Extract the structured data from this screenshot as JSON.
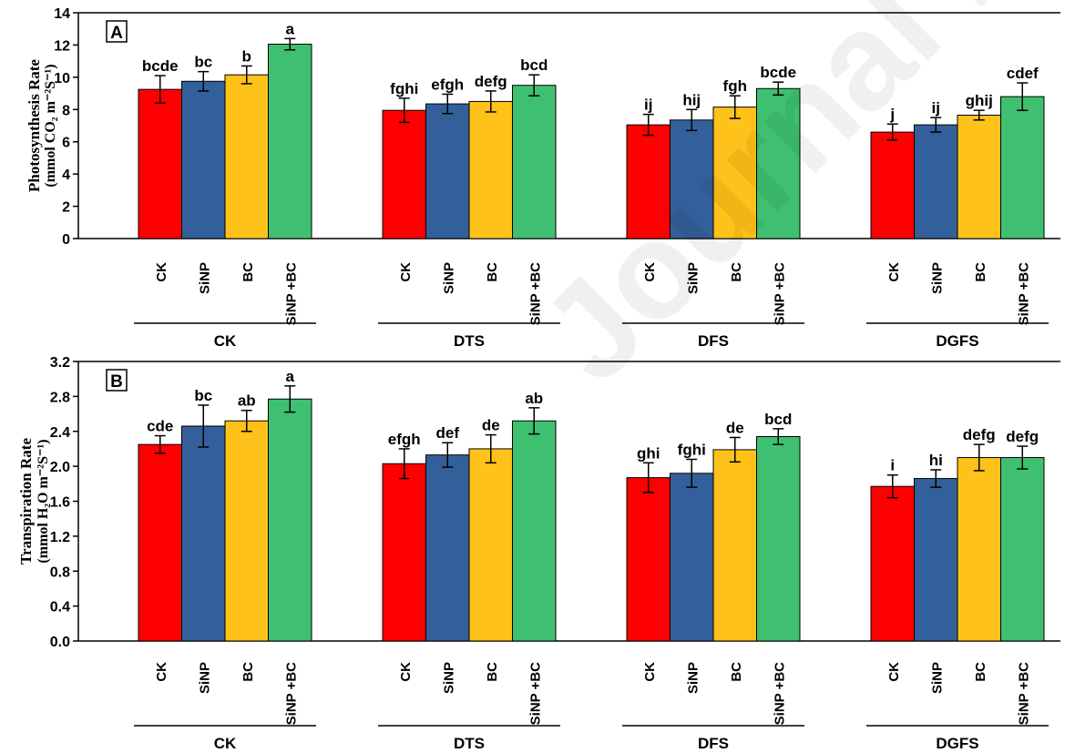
{
  "watermark": "Journal Pre-proof",
  "colors": {
    "CK": "#ff0000",
    "SiNP": "#33609a",
    "BC": "#ffc21a",
    "SiNP +BC": "#3ec070"
  },
  "chart_data": [
    {
      "type": "bar",
      "panel_label": "A",
      "ylabel_line1": "Photosynthesis Rate",
      "ylabel_line2": "(mmol CO₂ m⁻²S⁻¹)",
      "ylim": [
        0,
        14
      ],
      "ytick_step": 2,
      "ytick_decimals": 0,
      "groups": [
        "CK",
        "DTS",
        "DFS",
        "DGFS"
      ],
      "treatments": [
        "CK",
        "SiNP",
        "BC",
        "SiNP +BC"
      ],
      "series": [
        {
          "name": "CK",
          "values": [
            9.25,
            7.95,
            7.05,
            6.6
          ],
          "errors": [
            0.85,
            0.75,
            0.65,
            0.5
          ],
          "letters": [
            "bcde",
            "fghi",
            "ij",
            "j"
          ]
        },
        {
          "name": "SiNP",
          "values": [
            9.75,
            8.35,
            7.35,
            7.05
          ],
          "errors": [
            0.6,
            0.6,
            0.65,
            0.45
          ],
          "letters": [
            "bc",
            "efgh",
            "hij",
            "ij"
          ]
        },
        {
          "name": "BC",
          "values": [
            10.15,
            8.5,
            8.15,
            7.65
          ],
          "errors": [
            0.55,
            0.65,
            0.7,
            0.3
          ],
          "letters": [
            "b",
            "defg",
            "fgh",
            "ghij"
          ]
        },
        {
          "name": "SiNP +BC",
          "values": [
            12.05,
            9.5,
            9.3,
            8.8
          ],
          "errors": [
            0.35,
            0.65,
            0.4,
            0.85
          ],
          "letters": [
            "a",
            "bcd",
            "bcde",
            "cdef"
          ]
        }
      ]
    },
    {
      "type": "bar",
      "panel_label": "B",
      "ylabel_line1": "Transpiration Rate",
      "ylabel_line2": "(mmol H₂O m⁻²S⁻¹)",
      "ylim": [
        0,
        3.2
      ],
      "ytick_step": 0.4,
      "ytick_decimals": 1,
      "groups": [
        "CK",
        "DTS",
        "DFS",
        "DGFS"
      ],
      "treatments": [
        "CK",
        "SiNP",
        "BC",
        "SiNP +BC"
      ],
      "series": [
        {
          "name": "CK",
          "values": [
            2.25,
            2.03,
            1.87,
            1.77
          ],
          "errors": [
            0.1,
            0.17,
            0.17,
            0.13
          ],
          "letters": [
            "cde",
            "efgh",
            "ghi",
            "i"
          ]
        },
        {
          "name": "SiNP",
          "values": [
            2.46,
            2.13,
            1.92,
            1.86
          ],
          "errors": [
            0.24,
            0.14,
            0.16,
            0.1
          ],
          "letters": [
            "bc",
            "def",
            "fghi",
            "hi"
          ]
        },
        {
          "name": "BC",
          "values": [
            2.52,
            2.2,
            2.19,
            2.1
          ],
          "errors": [
            0.12,
            0.16,
            0.14,
            0.15
          ],
          "letters": [
            "ab",
            "de",
            "de",
            "defg"
          ]
        },
        {
          "name": "SiNP +BC",
          "values": [
            2.77,
            2.52,
            2.34,
            2.1
          ],
          "errors": [
            0.15,
            0.15,
            0.09,
            0.13
          ],
          "letters": [
            "a",
            "ab",
            "bcd",
            "defg"
          ]
        }
      ]
    }
  ]
}
